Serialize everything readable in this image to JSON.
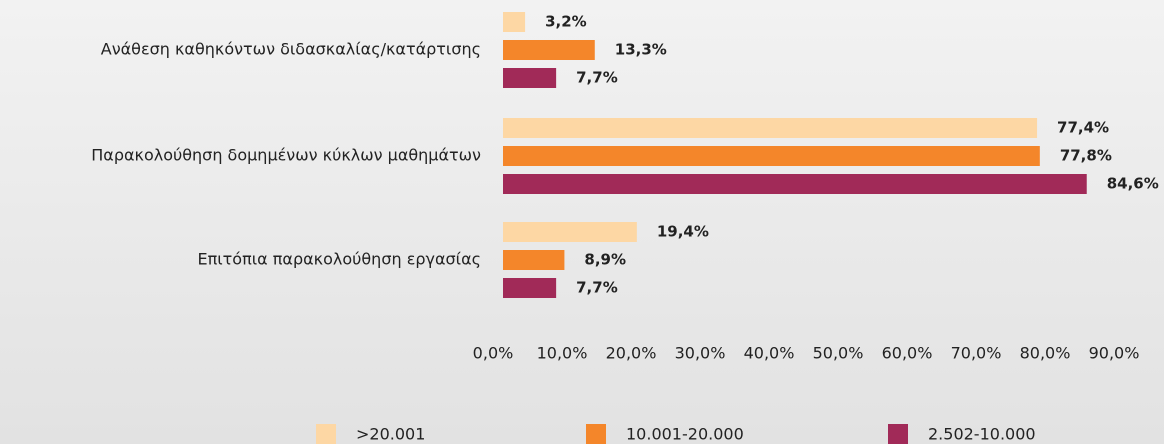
{
  "chart_data": {
    "type": "bar",
    "orientation": "horizontal",
    "categories": [
      "Ανάθεση καθηκόντων διδασκαλίας/κατάρτισης",
      "Παρακολούθηση δομημένων κύκλων μαθημάτων",
      "Επιτόπια παρακολούθηση εργασίας"
    ],
    "series": [
      {
        "name": ">20.001",
        "color": "#fdd7a4",
        "values": [
          3.2,
          77.4,
          19.4
        ],
        "value_labels": [
          "3,2%",
          "77,4%",
          "19,4%"
        ]
      },
      {
        "name": "10.001-20.000",
        "color": "#f4862a",
        "values": [
          13.3,
          77.8,
          8.9
        ],
        "value_labels": [
          "13,3%",
          "77,8%",
          "8,9%"
        ]
      },
      {
        "name": "2.502-10.000",
        "color": "#a12a58",
        "values": [
          7.7,
          84.6,
          7.7
        ],
        "value_labels": [
          "7,7%",
          "84,6%",
          "7,7%"
        ]
      }
    ],
    "xlim": [
      0,
      90
    ],
    "xticks": [
      {
        "value": 0,
        "label": "0,0%"
      },
      {
        "value": 10,
        "label": "10,0%"
      },
      {
        "value": 20,
        "label": "20,0%"
      },
      {
        "value": 30,
        "label": "30,0%"
      },
      {
        "value": 40,
        "label": "40,0%"
      },
      {
        "value": 50,
        "label": "50,0%"
      },
      {
        "value": 60,
        "label": "60,0%"
      },
      {
        "value": 70,
        "label": "70,0%"
      },
      {
        "value": 80,
        "label": "80,0%"
      },
      {
        "value": 90,
        "label": "90,0%"
      }
    ],
    "grid": false,
    "legend": "bottom"
  }
}
